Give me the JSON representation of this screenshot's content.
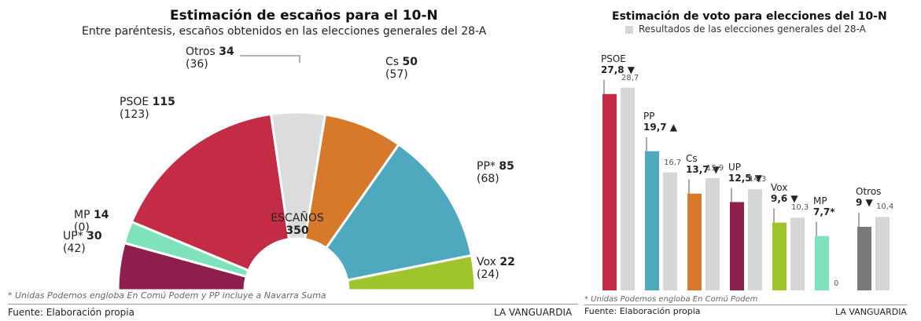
{
  "left": {
    "title": "Estimación de escaños para el 10-N",
    "subtitle": "Entre paréntesis, escaños obtenidos en las elecciones generales del 28-A",
    "center_label": "ESCAÑOS",
    "center_value": "350",
    "note": "* Unidas Podemos engloba En Comú Podem y PP incluye a Navarra Suma",
    "source": "Fuente: Elaboración propia",
    "brand": "LA VANGUARDIA"
  },
  "right": {
    "title": "Estimación de voto para elecciones del 10-N",
    "legend": "Resultados de las elecciones generales del 28-A",
    "note": "* Unidas Podemos engloba En Comú Podem",
    "source": "Fuente: Elaboración propia",
    "brand": "LA VANGUARDIA"
  },
  "chart_data": [
    {
      "type": "pie",
      "title": "Estimación de escaños para el 10-N",
      "subtitle": "Entre paréntesis, escaños obtenidos en las elecciones generales del 28-A",
      "total": 350,
      "slices": [
        {
          "name": "UP*",
          "seats": "30",
          "previous": "(42)",
          "color": "#8e1f4c"
        },
        {
          "name": "MP",
          "seats": "14",
          "previous": "(0)",
          "color": "#7ee3bb"
        },
        {
          "name": "PSOE",
          "seats": "115",
          "previous": "(123)",
          "color": "#c42b45"
        },
        {
          "name": "Otros",
          "seats": "34",
          "previous": "(36)",
          "color": "#dcdcdc"
        },
        {
          "name": "Cs",
          "seats": "50",
          "previous": "(57)",
          "color": "#d6792a"
        },
        {
          "name": "PP*",
          "seats": "85",
          "previous": "(68)",
          "color": "#4ea9bf"
        },
        {
          "name": "Vox",
          "seats": "22",
          "previous": "(24)",
          "color": "#9ec52b"
        }
      ]
    },
    {
      "type": "bar",
      "title": "Estimación de voto para elecciones del 10-N",
      "categories": [
        "PSOE",
        "PP",
        "Cs",
        "UP",
        "Vox",
        "MP",
        "Otros"
      ],
      "labels": [
        "27,8 ▼",
        "19,7 ▲",
        "13,7 ▼",
        "12,5 ▼",
        "9,6 ▼",
        "7,7*",
        "9 ▼"
      ],
      "previous_labels": [
        "28,7",
        "16,7",
        "15,9",
        "14,3",
        "10,3",
        "0",
        "10,4"
      ],
      "series": [
        {
          "values": [
            27.8,
            19.7,
            13.7,
            12.5,
            9.6,
            7.7,
            9
          ],
          "colors": [
            "#c42b45",
            "#4ea9bf",
            "#d6792a",
            "#8e1f4c",
            "#9ec52b",
            "#7ee3bb",
            "#7a7a7a"
          ]
        },
        {
          "name": "Resultados de las elecciones generales del 28-A",
          "values": [
            28.7,
            16.7,
            15.9,
            14.3,
            10.3,
            0,
            10.4
          ],
          "color": "#d6d6d6"
        }
      ]
    }
  ]
}
